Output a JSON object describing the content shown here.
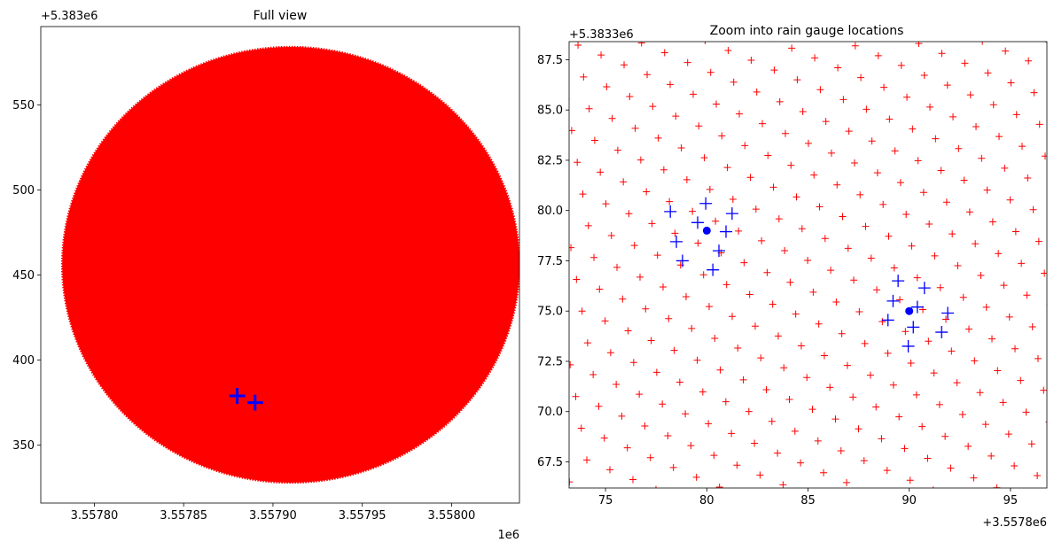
{
  "chart_data": [
    {
      "type": "scatter",
      "title": "Full view",
      "xlabel": "",
      "ylabel": "",
      "x_offset_label": "1e6",
      "y_offset_label": "+5.383e6",
      "xlim": [
        3.55777,
        3.558038
      ],
      "ylim": [
        316,
        596
      ],
      "x_ticks": [
        3.5578,
        3.55785,
        3.5579,
        3.55795,
        3.558
      ],
      "x_tick_labels": [
        "3.55780",
        "3.55785",
        "3.55790",
        "3.55795",
        "3.55800"
      ],
      "y_ticks": [
        350,
        400,
        450,
        500,
        550
      ],
      "y_tick_labels": [
        "350",
        "400",
        "450",
        "500",
        "550"
      ],
      "grid": false,
      "series": [
        {
          "kind": "grid-points",
          "marker": "+",
          "color": "#ff0000",
          "shape": "filled-circle",
          "center": {
            "x": 3.55791,
            "y": 456.0
          },
          "radius": {
            "x": 0.000128,
            "y": 128.0
          }
        },
        {
          "kind": "gauge-points",
          "marker": "+",
          "color": "#0000ff",
          "points": [
            {
              "x": 3.55788,
              "y": 379.0
            },
            {
              "x": 3.55789,
              "y": 375.0
            }
          ]
        }
      ]
    },
    {
      "type": "scatter",
      "title": "Zoom into rain gauge locations",
      "xlabel": "",
      "ylabel": "",
      "x_offset_label": "+3.5578e6",
      "y_offset_label": "+5.3833e6",
      "xlim": [
        73.2,
        96.8
      ],
      "ylim": [
        66.2,
        88.4
      ],
      "x_ticks": [
        75,
        80,
        85,
        90,
        95
      ],
      "x_tick_labels": [
        "75",
        "80",
        "85",
        "90",
        "95"
      ],
      "y_ticks": [
        67.5,
        70.0,
        72.5,
        75.0,
        77.5,
        80.0,
        82.5,
        85.0,
        87.5
      ],
      "y_tick_labels": [
        "67.5",
        "70.0",
        "72.5",
        "75.0",
        "77.5",
        "80.0",
        "82.5",
        "85.0",
        "87.5"
      ],
      "grid": false,
      "series": [
        {
          "kind": "grid-points",
          "marker": "+",
          "color": "#ff0000",
          "lattice": {
            "origin": [
              80.43,
              79.47
            ],
            "step_a": [
              0.863,
              1.09
            ],
            "step_b": [
              -1.138,
              0.488
            ]
          }
        },
        {
          "kind": "gauge-centers",
          "marker": "o",
          "color": "#0000ff",
          "points": [
            {
              "x": 80.0,
              "y": 79.0
            },
            {
              "x": 90.0,
              "y": 75.0
            }
          ]
        },
        {
          "kind": "gauge-points",
          "marker": "+",
          "color": "#0000ff",
          "points": [
            {
              "x": 79.95,
              "y": 80.35
            },
            {
              "x": 81.25,
              "y": 79.85
            },
            {
              "x": 78.2,
              "y": 79.95
            },
            {
              "x": 79.55,
              "y": 79.4
            },
            {
              "x": 80.95,
              "y": 78.95
            },
            {
              "x": 78.5,
              "y": 78.45
            },
            {
              "x": 80.6,
              "y": 78.0
            },
            {
              "x": 78.8,
              "y": 77.5
            },
            {
              "x": 80.3,
              "y": 77.05
            },
            {
              "x": 89.45,
              "y": 76.5
            },
            {
              "x": 90.75,
              "y": 76.15
            },
            {
              "x": 89.2,
              "y": 75.5
            },
            {
              "x": 90.4,
              "y": 75.2
            },
            {
              "x": 91.9,
              "y": 74.9
            },
            {
              "x": 88.95,
              "y": 74.55
            },
            {
              "x": 90.2,
              "y": 74.2
            },
            {
              "x": 91.6,
              "y": 73.95
            },
            {
              "x": 89.95,
              "y": 73.25
            }
          ]
        }
      ]
    }
  ]
}
